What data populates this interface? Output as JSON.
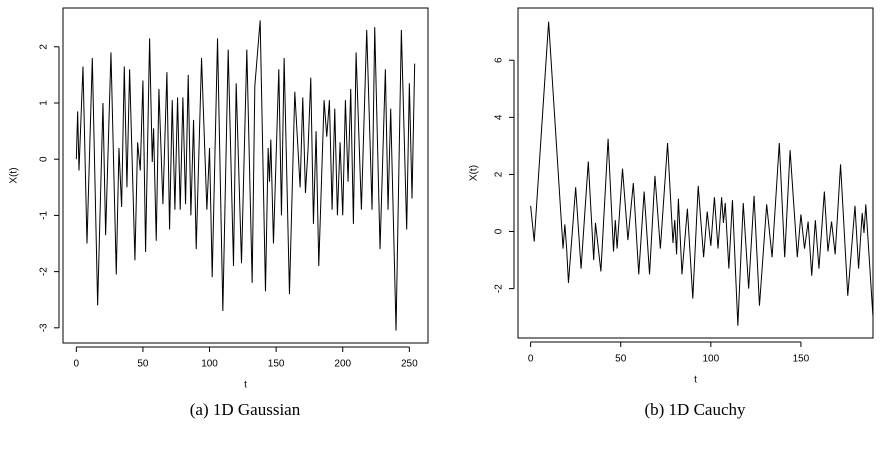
{
  "chart_data": [
    {
      "type": "line",
      "caption": "(a) 1D Gaussian",
      "x_label": "t",
      "y_label": "X(t)",
      "color": "#000000",
      "x": [
        0,
        1,
        2,
        5,
        8,
        12,
        16,
        20,
        22,
        26,
        30,
        32,
        34,
        36,
        38,
        40,
        44,
        46,
        48,
        50,
        52,
        55,
        57,
        58,
        60,
        62,
        65,
        68,
        70,
        72,
        74,
        76,
        78,
        80,
        82,
        84,
        86,
        88,
        90,
        94,
        98,
        100,
        102,
        106,
        110,
        114,
        118,
        120,
        124,
        128,
        132,
        134,
        138,
        142,
        144,
        145,
        146,
        148,
        152,
        154,
        156,
        160,
        164,
        168,
        170,
        172,
        174,
        176,
        178,
        180,
        182,
        186,
        188,
        190,
        192,
        194,
        196,
        198,
        199,
        200,
        202,
        204,
        206,
        208,
        210,
        214,
        218,
        222,
        224,
        228,
        232,
        234,
        236,
        240,
        244,
        248,
        250,
        252,
        254
      ],
      "values": [
        0,
        0.85,
        -0.2,
        1.65,
        -1.5,
        1.8,
        -2.6,
        1.0,
        -1.35,
        1.9,
        -2.05,
        0.2,
        -0.85,
        1.65,
        -0.5,
        1.6,
        -1.8,
        0.3,
        -0.2,
        1.4,
        -1.65,
        2.15,
        -0.05,
        0.55,
        -1.45,
        1.25,
        -0.8,
        1.55,
        -1.25,
        1.05,
        -0.9,
        1.1,
        -0.9,
        1.1,
        -0.8,
        1.5,
        -1.0,
        0.7,
        -1.6,
        1.8,
        -0.9,
        0.2,
        -2.1,
        2.15,
        -2.7,
        1.95,
        -1.9,
        1.35,
        -1.85,
        1.95,
        -2.2,
        1.3,
        2.47,
        -2.35,
        0.2,
        -0.4,
        0.35,
        -1.5,
        1.6,
        -1.0,
        1.8,
        -2.4,
        1.2,
        -0.5,
        1.1,
        -0.6,
        0.2,
        1.45,
        -1.15,
        0.5,
        -1.9,
        1.05,
        0.4,
        1.05,
        -0.9,
        0.9,
        -1.0,
        0.3,
        -0.35,
        -1.0,
        1.05,
        -0.4,
        1.25,
        -1.15,
        1.9,
        -0.9,
        2.3,
        -0.9,
        2.35,
        -1.6,
        1.6,
        -0.9,
        0.9,
        -3.05,
        2.3,
        -1.25,
        1.35,
        -0.7,
        1.7
      ],
      "xlim": [
        -10,
        264
      ],
      "ylim": [
        -3.27,
        2.69
      ],
      "xticks": [
        0,
        50,
        100,
        150,
        200,
        250
      ],
      "yticks": [
        -3,
        -2,
        -1,
        0,
        1,
        2
      ]
    },
    {
      "type": "line",
      "caption": "(b) 1D Cauchy",
      "x_label": "t",
      "y_label": "X(t)",
      "color": "#000000",
      "x": [
        0,
        2,
        10,
        18,
        19,
        20,
        21,
        25,
        28,
        32,
        35,
        36,
        39,
        43,
        46,
        47,
        48,
        51,
        54,
        57,
        60,
        63,
        66,
        69,
        72,
        76,
        79,
        80,
        81,
        82,
        84,
        87,
        90,
        93,
        96,
        98,
        100,
        102,
        104,
        106,
        107,
        108,
        110,
        112,
        115,
        118,
        121,
        124,
        127,
        131,
        134,
        138,
        141,
        144,
        148,
        150,
        152,
        154,
        156,
        158,
        160,
        163,
        165,
        167,
        169,
        172,
        176,
        180,
        182,
        184,
        185,
        186,
        190
      ],
      "values": [
        0.9,
        -0.35,
        7.35,
        -0.6,
        0.25,
        -0.6,
        -1.8,
        1.55,
        -1.3,
        2.45,
        -1.0,
        0.3,
        -1.4,
        3.25,
        -0.7,
        0.4,
        -0.6,
        2.2,
        -0.3,
        1.7,
        -1.5,
        1.4,
        -1.5,
        1.95,
        -0.6,
        3.1,
        -0.4,
        0.4,
        -0.8,
        1.15,
        -1.5,
        0.8,
        -2.35,
        1.6,
        -0.9,
        0.7,
        -0.5,
        1.2,
        -0.6,
        1.2,
        0.3,
        1.0,
        -1.3,
        1.1,
        -3.3,
        1.0,
        -2.0,
        1.25,
        -2.6,
        0.95,
        -0.9,
        3.1,
        -0.9,
        2.85,
        -0.9,
        0.6,
        -0.6,
        0.35,
        -1.55,
        0.4,
        -1.3,
        1.4,
        -0.7,
        0.35,
        -0.8,
        2.35,
        -2.25,
        0.9,
        -1.3,
        0.65,
        -0.05,
        0.95,
        -3.0
      ],
      "xlim": [
        -7,
        190
      ],
      "ylim": [
        -3.73,
        7.83
      ],
      "xticks": [
        0,
        50,
        100,
        150
      ],
      "yticks": [
        -2,
        0,
        2,
        4,
        6
      ]
    }
  ]
}
